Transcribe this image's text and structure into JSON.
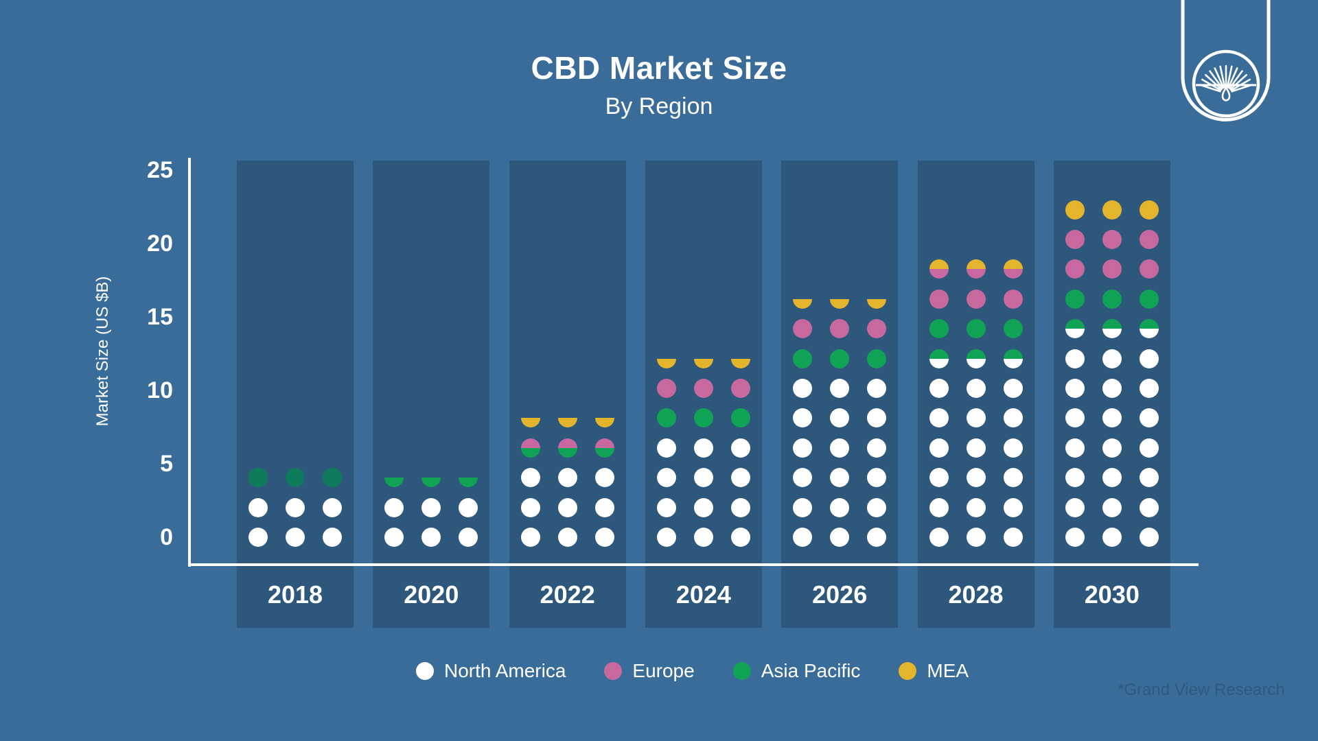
{
  "title": "CBD Market Size",
  "subtitle": "By Region",
  "footnote": "*Grand View Research",
  "colors": {
    "background": "#3a6c99",
    "column_background": "#2e587b",
    "axis": "#ffffff",
    "W": "#ffffff",
    "P": "#c7699e",
    "G": "#10a356",
    "GD": "#0d7b5c",
    "AU": "#e4b42d",
    "footnote_text": "#2d5a7f"
  },
  "y_axis": {
    "label": "Market Size (US $B)",
    "ticks": [
      25,
      20,
      15,
      10,
      5,
      0
    ]
  },
  "legend": [
    {
      "label": "North America",
      "color_key": "W"
    },
    {
      "label": "Europe",
      "color_key": "P"
    },
    {
      "label": "Asia Pacific",
      "color_key": "G"
    },
    {
      "label": "MEA",
      "color_key": "AU"
    }
  ],
  "chart_data": {
    "type": "bar",
    "stacked": true,
    "style": "pictogram-dots",
    "title": "CBD Market Size",
    "subtitle": "By Region",
    "categories": [
      "2018",
      "2020",
      "2022",
      "2024",
      "2026",
      "2028",
      "2030"
    ],
    "ylabel": "Market Size (US $B)",
    "ylim": [
      0,
      25
    ],
    "units": "US $B",
    "dot_value_billions": 2,
    "grid": false,
    "legend_position": "bottom",
    "series": [
      {
        "name": "North America",
        "values": [
          4,
          4,
          6,
          8,
          12,
          13,
          15
        ]
      },
      {
        "name": "Europe",
        "values": [
          0,
          0,
          1,
          2,
          2,
          3,
          4
        ]
      },
      {
        "name": "Asia Pacific",
        "values": [
          2,
          1,
          1,
          2,
          2,
          3,
          3
        ]
      },
      {
        "name": "MEA",
        "values": [
          0,
          0,
          1,
          1,
          1,
          1,
          2
        ]
      }
    ],
    "totals": [
      6,
      5,
      9,
      13,
      17,
      20,
      24
    ],
    "dot_patterns_bottom_to_top": [
      [
        "W",
        "W",
        "GD"
      ],
      [
        "W",
        "W",
        "HG"
      ],
      [
        "W",
        "W",
        "W",
        "G|P",
        "HAU"
      ],
      [
        "W",
        "W",
        "W",
        "W",
        "G",
        "P",
        "HAU"
      ],
      [
        "W",
        "W",
        "W",
        "W",
        "W",
        "W",
        "G",
        "P",
        "HAU"
      ],
      [
        "W",
        "W",
        "W",
        "W",
        "W",
        "W",
        "W|G",
        "G",
        "P",
        "P|AU"
      ],
      [
        "W",
        "W",
        "W",
        "W",
        "W",
        "W",
        "W",
        "W|G",
        "G",
        "P",
        "P",
        "AU"
      ]
    ]
  },
  "logo": {
    "name": "grand-view-research-logo"
  }
}
